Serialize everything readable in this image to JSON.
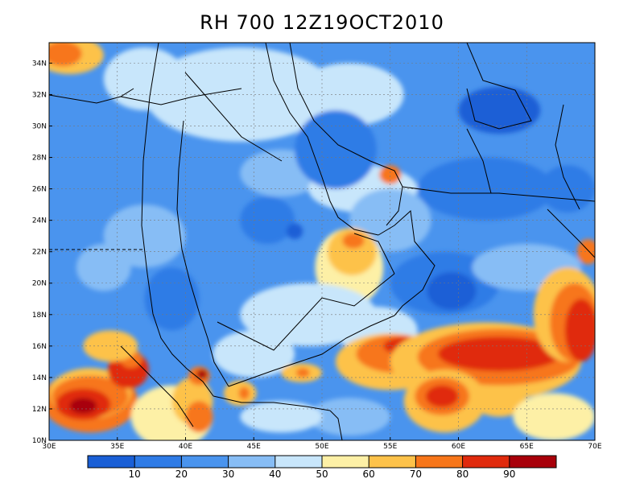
{
  "title": "RH 700 12Z19OCT2010",
  "map": {
    "lon_range": [
      30,
      70
    ],
    "lat_range": [
      10,
      35
    ],
    "lon_ticks": [
      "30E",
      "35E",
      "40E",
      "45E",
      "50E",
      "55E",
      "60E",
      "65E",
      "70E"
    ],
    "lat_ticks": [
      "10N",
      "12N",
      "14N",
      "16N",
      "18N",
      "20N",
      "22N",
      "24N",
      "26N",
      "28N",
      "30N",
      "32N",
      "34N"
    ],
    "lon_tick_values": [
      30,
      35,
      40,
      45,
      50,
      55,
      60,
      65,
      70
    ],
    "lat_tick_values": [
      10,
      12,
      14,
      16,
      18,
      20,
      22,
      24,
      26,
      28,
      30,
      32,
      34
    ],
    "grid_lines": true,
    "variable": "relative humidity at 700 hPa (%)"
  },
  "colorbar": {
    "levels": [
      "10",
      "20",
      "30",
      "40",
      "50",
      "60",
      "70",
      "80",
      "90"
    ],
    "colors": [
      "#1a5fd6",
      "#2f7be6",
      "#4a94ee",
      "#87bdf5",
      "#c8e6fb",
      "#fdf0a6",
      "#fdc24a",
      "#f7761a",
      "#e02a0d",
      "#a8000a"
    ]
  },
  "field_blobs": [
    {
      "lon": 31.5,
      "lat": 34.5,
      "rx": 2.5,
      "ry": 1.2,
      "color": "#fdc24a"
    },
    {
      "lon": 31.0,
      "lat": 34.6,
      "rx": 1.4,
      "ry": 0.8,
      "color": "#f7761a"
    },
    {
      "lon": 44,
      "lat": 32,
      "rx": 7,
      "ry": 3,
      "color": "#c8e6fb"
    },
    {
      "lon": 37,
      "lat": 33,
      "rx": 3,
      "ry": 2,
      "color": "#c8e6fb"
    },
    {
      "lon": 52,
      "lat": 32,
      "rx": 4,
      "ry": 2,
      "color": "#c8e6fb"
    },
    {
      "lon": 47,
      "lat": 27,
      "rx": 3,
      "ry": 1.5,
      "color": "#87bdf5"
    },
    {
      "lon": 53,
      "lat": 26,
      "rx": 4,
      "ry": 1.5,
      "color": "#c8e6fb"
    },
    {
      "lon": 55,
      "lat": 26.9,
      "rx": 0.8,
      "ry": 0.6,
      "color": "#f7761a"
    },
    {
      "lon": 51,
      "lat": 28.5,
      "rx": 3,
      "ry": 2.5,
      "color": "#2f7be6"
    },
    {
      "lon": 63,
      "lat": 31,
      "rx": 3,
      "ry": 1.5,
      "color": "#1a5fd6"
    },
    {
      "lon": 64,
      "lat": 31.3,
      "rx": 1.2,
      "ry": 0.8,
      "color": "#1a5fd6"
    },
    {
      "lon": 62,
      "lat": 26,
      "rx": 5,
      "ry": 2,
      "color": "#2f7be6"
    },
    {
      "lon": 68,
      "lat": 26,
      "rx": 2,
      "ry": 1.5,
      "color": "#2f7be6"
    },
    {
      "lon": 55,
      "lat": 24,
      "rx": 3,
      "ry": 2,
      "color": "#87bdf5"
    },
    {
      "lon": 52,
      "lat": 21,
      "rx": 2.5,
      "ry": 2.5,
      "color": "#fdf0a6"
    },
    {
      "lon": 52.2,
      "lat": 22,
      "rx": 1.8,
      "ry": 1.5,
      "color": "#fdc24a"
    },
    {
      "lon": 52.3,
      "lat": 22.7,
      "rx": 0.8,
      "ry": 0.5,
      "color": "#f7761a"
    },
    {
      "lon": 49,
      "lat": 18,
      "rx": 5,
      "ry": 2,
      "color": "#c8e6fb"
    },
    {
      "lon": 45,
      "lat": 15.5,
      "rx": 3,
      "ry": 1.5,
      "color": "#c8e6fb"
    },
    {
      "lon": 54,
      "lat": 17,
      "rx": 3,
      "ry": 1.5,
      "color": "#c8e6fb"
    },
    {
      "lon": 59,
      "lat": 20,
      "rx": 4,
      "ry": 2,
      "color": "#2f7be6"
    },
    {
      "lon": 59.5,
      "lat": 19.5,
      "rx": 1.8,
      "ry": 1.2,
      "color": "#1a5fd6"
    },
    {
      "lon": 65,
      "lat": 21,
      "rx": 4,
      "ry": 1.5,
      "color": "#87bdf5"
    },
    {
      "lon": 39,
      "lat": 19,
      "rx": 2,
      "ry": 2,
      "color": "#2f7be6"
    },
    {
      "lon": 37,
      "lat": 23,
      "rx": 3,
      "ry": 2,
      "color": "#87bdf5"
    },
    {
      "lon": 34,
      "lat": 21,
      "rx": 2,
      "ry": 1.5,
      "color": "#87bdf5"
    },
    {
      "lon": 46,
      "lat": 24,
      "rx": 2,
      "ry": 1.5,
      "color": "#2f7be6"
    },
    {
      "lon": 48,
      "lat": 23.3,
      "rx": 0.6,
      "ry": 0.5,
      "color": "#1a5fd6"
    },
    {
      "lon": 33,
      "lat": 12.5,
      "rx": 3.5,
      "ry": 2,
      "color": "#f7761a"
    },
    {
      "lon": 33,
      "lat": 13,
      "rx": 3,
      "ry": 1.6,
      "color": "#fdc24a"
    },
    {
      "lon": 33,
      "lat": 12.8,
      "rx": 2.8,
      "ry": 1.3,
      "color": "#f7761a"
    },
    {
      "lon": 32.5,
      "lat": 12.3,
      "rx": 2,
      "ry": 1,
      "color": "#e02a0d"
    },
    {
      "lon": 32.5,
      "lat": 12.2,
      "rx": 1,
      "ry": 0.5,
      "color": "#a8000a"
    },
    {
      "lon": 35.8,
      "lat": 14.5,
      "rx": 1.5,
      "ry": 1.2,
      "color": "#e02a0d"
    },
    {
      "lon": 36,
      "lat": 15.2,
      "rx": 0.8,
      "ry": 0.6,
      "color": "#f7761a"
    },
    {
      "lon": 34.5,
      "lat": 16,
      "rx": 2,
      "ry": 1,
      "color": "#fdc24a"
    },
    {
      "lon": 39,
      "lat": 11.5,
      "rx": 3,
      "ry": 2,
      "color": "#fdf0a6"
    },
    {
      "lon": 40.5,
      "lat": 12.5,
      "rx": 1.5,
      "ry": 1.5,
      "color": "#fdc24a"
    },
    {
      "lon": 41,
      "lat": 11.5,
      "rx": 1,
      "ry": 1,
      "color": "#f7761a"
    },
    {
      "lon": 41,
      "lat": 14.1,
      "rx": 0.8,
      "ry": 0.6,
      "color": "#f7761a"
    },
    {
      "lon": 41.2,
      "lat": 14.2,
      "rx": 0.4,
      "ry": 0.3,
      "color": "#a8000a"
    },
    {
      "lon": 44,
      "lat": 13,
      "rx": 1.2,
      "ry": 0.8,
      "color": "#fdc24a"
    },
    {
      "lon": 44.3,
      "lat": 13,
      "rx": 0.4,
      "ry": 0.4,
      "color": "#f7761a"
    },
    {
      "lon": 48.5,
      "lat": 14.3,
      "rx": 1.5,
      "ry": 0.6,
      "color": "#fdc24a"
    },
    {
      "lon": 48.6,
      "lat": 14.3,
      "rx": 0.5,
      "ry": 0.3,
      "color": "#f7761a"
    },
    {
      "lon": 55,
      "lat": 15,
      "rx": 4,
      "ry": 1.8,
      "color": "#fdc24a"
    },
    {
      "lon": 55.5,
      "lat": 15.5,
      "rx": 3,
      "ry": 1.2,
      "color": "#f7761a"
    },
    {
      "lon": 56.5,
      "lat": 16,
      "rx": 2,
      "ry": 0.6,
      "color": "#e02a0d"
    },
    {
      "lon": 62,
      "lat": 15,
      "rx": 7,
      "ry": 2.5,
      "color": "#fdc24a"
    },
    {
      "lon": 63,
      "lat": 15.3,
      "rx": 6,
      "ry": 1.8,
      "color": "#f7761a"
    },
    {
      "lon": 63,
      "lat": 15.5,
      "rx": 4.5,
      "ry": 1.1,
      "color": "#e02a0d"
    },
    {
      "lon": 68,
      "lat": 18,
      "rx": 2.5,
      "ry": 3,
      "color": "#fdc24a"
    },
    {
      "lon": 68.5,
      "lat": 17.5,
      "rx": 1.8,
      "ry": 2.5,
      "color": "#f7761a"
    },
    {
      "lon": 69,
      "lat": 17,
      "rx": 1.2,
      "ry": 2,
      "color": "#e02a0d"
    },
    {
      "lon": 59,
      "lat": 12.5,
      "rx": 3,
      "ry": 2,
      "color": "#fdc24a"
    },
    {
      "lon": 58.8,
      "lat": 12.8,
      "rx": 2,
      "ry": 1.2,
      "color": "#f7761a"
    },
    {
      "lon": 58.8,
      "lat": 12.8,
      "rx": 1.2,
      "ry": 0.7,
      "color": "#e02a0d"
    },
    {
      "lon": 63,
      "lat": 12.5,
      "rx": 2,
      "ry": 1,
      "color": "#fdc24a"
    },
    {
      "lon": 67,
      "lat": 11.5,
      "rx": 3,
      "ry": 1.5,
      "color": "#fdf0a6"
    },
    {
      "lon": 69.5,
      "lat": 22,
      "rx": 0.8,
      "ry": 0.8,
      "color": "#f7761a"
    },
    {
      "lon": 52,
      "lat": 11.5,
      "rx": 3,
      "ry": 1.2,
      "color": "#87bdf5"
    },
    {
      "lon": 47,
      "lat": 11.5,
      "rx": 3,
      "ry": 1,
      "color": "#c8e6fb"
    }
  ]
}
